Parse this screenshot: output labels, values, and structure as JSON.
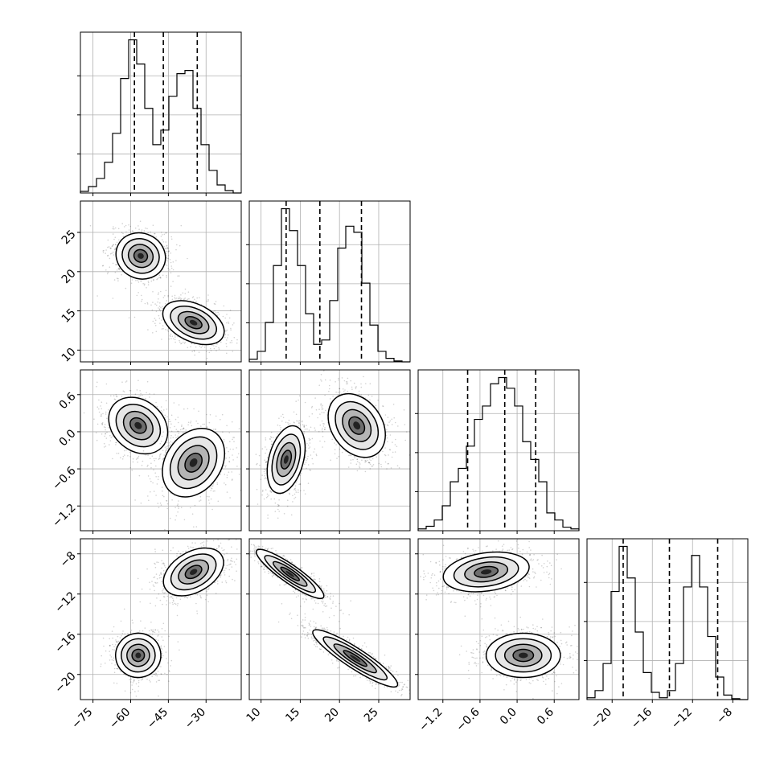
{
  "chart_data": {
    "type": "corner",
    "parameters": [
      {
        "range": [
          -80,
          -16
        ],
        "ticks": [
          -75,
          -60,
          -45,
          -30
        ],
        "tick_labels": [
          "−75",
          "−60",
          "−45",
          "−30"
        ]
      },
      {
        "range": [
          8.5,
          29
        ],
        "ticks": [
          10,
          15,
          20,
          25
        ],
        "tick_labels": [
          "10",
          "15",
          "20",
          "25"
        ]
      },
      {
        "range": [
          -1.6,
          1.0
        ],
        "ticks": [
          -1.2,
          -0.6,
          0.0,
          0.6
        ],
        "tick_labels": [
          "−1.2",
          "−0.6",
          "0.0",
          "0.6"
        ]
      },
      {
        "range": [
          -22.5,
          -6.5
        ],
        "ticks": [
          -20,
          -16,
          -12,
          -8
        ],
        "tick_labels": [
          "−20",
          "−16",
          "−12",
          "−8"
        ]
      }
    ],
    "diagonal": [
      {
        "param": 0,
        "bin_edges": [
          -80,
          -76.8,
          -73.6,
          -70.4,
          -67.2,
          -64,
          -60.8,
          -57.6,
          -54.4,
          -51.2,
          -48,
          -44.8,
          -41.6,
          -38.4,
          -35.2,
          -32,
          -28.8,
          -25.6,
          -22.4,
          -19.2,
          -16
        ],
        "counts": [
          2,
          8,
          18,
          38,
          74,
          142,
          190,
          160,
          105,
          60,
          78,
          120,
          148,
          152,
          105,
          60,
          28,
          10,
          3,
          0
        ],
        "quantiles": [
          -58.5,
          -47.0,
          -33.5
        ]
      },
      {
        "param": 1,
        "bin_edges": [
          8.5,
          9.525,
          10.55,
          11.575,
          12.6,
          13.625,
          14.65,
          15.675,
          16.7,
          17.725,
          18.75,
          19.775,
          20.8,
          21.825,
          22.85,
          23.875,
          24.9,
          25.925,
          26.95,
          27.975,
          29.0
        ],
        "counts": [
          3,
          12,
          45,
          110,
          175,
          150,
          110,
          55,
          20,
          25,
          70,
          130,
          155,
          148,
          90,
          42,
          12,
          4,
          1,
          0
        ],
        "quantiles": [
          13.2,
          17.5,
          22.8
        ]
      },
      {
        "param": 2,
        "bin_edges": [
          -1.6,
          -1.47,
          -1.34,
          -1.21,
          -1.08,
          -0.95,
          -0.82,
          -0.69,
          -0.56,
          -0.43,
          -0.3,
          -0.17,
          -0.04,
          0.09,
          0.22,
          0.35,
          0.48,
          0.61,
          0.74,
          0.87,
          1.0
        ],
        "counts": [
          2,
          5,
          12,
          28,
          55,
          70,
          95,
          125,
          140,
          165,
          172,
          160,
          140,
          100,
          80,
          55,
          20,
          12,
          4,
          2
        ],
        "quantiles": [
          -0.8,
          -0.2,
          0.3
        ]
      },
      {
        "param": 3,
        "bin_edges": [
          -22.5,
          -21.7,
          -20.9,
          -20.1,
          -19.3,
          -18.5,
          -17.7,
          -16.9,
          -16.1,
          -15.3,
          -14.5,
          -13.7,
          -12.9,
          -12.1,
          -11.3,
          -10.5,
          -9.7,
          -8.9,
          -8.1,
          -7.3,
          -6.5
        ],
        "counts": [
          2,
          10,
          40,
          120,
          170,
          135,
          75,
          30,
          8,
          2,
          10,
          40,
          125,
          160,
          125,
          70,
          25,
          5,
          1,
          0
        ],
        "quantiles": [
          -18.9,
          -14.3,
          -9.5
        ]
      }
    ],
    "pairs": [
      {
        "x_param": 0,
        "y_param": 1,
        "modes": [
          {
            "center": [
              -56,
              22
            ],
            "sd": [
              4.5,
              1.6
            ],
            "angle": -25,
            "weight": 1
          },
          {
            "center": [
              -35,
              13.5
            ],
            "sd": [
              6.5,
              1.2
            ],
            "angle": -25,
            "weight": 1
          }
        ]
      },
      {
        "x_param": 0,
        "y_param": 2,
        "modes": [
          {
            "center": [
              -57,
              0.1
            ],
            "sd": [
              5.0,
              0.26
            ],
            "angle": -40,
            "weight": 1
          },
          {
            "center": [
              -35,
              -0.5
            ],
            "sd": [
              5.5,
              0.3
            ],
            "angle": 55,
            "weight": 1
          }
        ]
      },
      {
        "x_param": 1,
        "y_param": 2,
        "modes": [
          {
            "center": [
              13.2,
              -0.45
            ],
            "sd": [
              1.1,
              0.28
            ],
            "angle": 75,
            "weight": 1
          },
          {
            "center": [
              22.2,
              0.1
            ],
            "sd": [
              1.6,
              0.28
            ],
            "angle": -55,
            "weight": 1
          }
        ]
      },
      {
        "x_param": 0,
        "y_param": 3,
        "modes": [
          {
            "center": [
              -57,
              -18.1
            ],
            "sd": [
              4.5,
              1.1
            ],
            "angle": 10,
            "weight": 1
          },
          {
            "center": [
              -35,
              -9.8
            ],
            "sd": [
              6.5,
              1.0
            ],
            "angle": 30,
            "weight": 1
          }
        ]
      },
      {
        "x_param": 1,
        "y_param": 3,
        "modes": [
          {
            "center": [
              13.7,
              -10.0
            ],
            "sd": [
              2.6,
              0.45
            ],
            "angle": -35,
            "weight": 1
          },
          {
            "center": [
              22.0,
              -18.4
            ],
            "sd": [
              3.2,
              0.5
            ],
            "angle": -33,
            "weight": 1
          }
        ]
      },
      {
        "x_param": 2,
        "y_param": 3,
        "modes": [
          {
            "center": [
              -0.5,
              -9.8
            ],
            "sd": [
              0.35,
              0.95
            ],
            "angle": 8,
            "weight": 1
          },
          {
            "center": [
              0.1,
              -18.1
            ],
            "sd": [
              0.3,
              1.1
            ],
            "angle": 0,
            "weight": 1
          }
        ]
      }
    ],
    "grid": true,
    "scatter_color": "#7f7f7f",
    "line_color": "#000000"
  }
}
